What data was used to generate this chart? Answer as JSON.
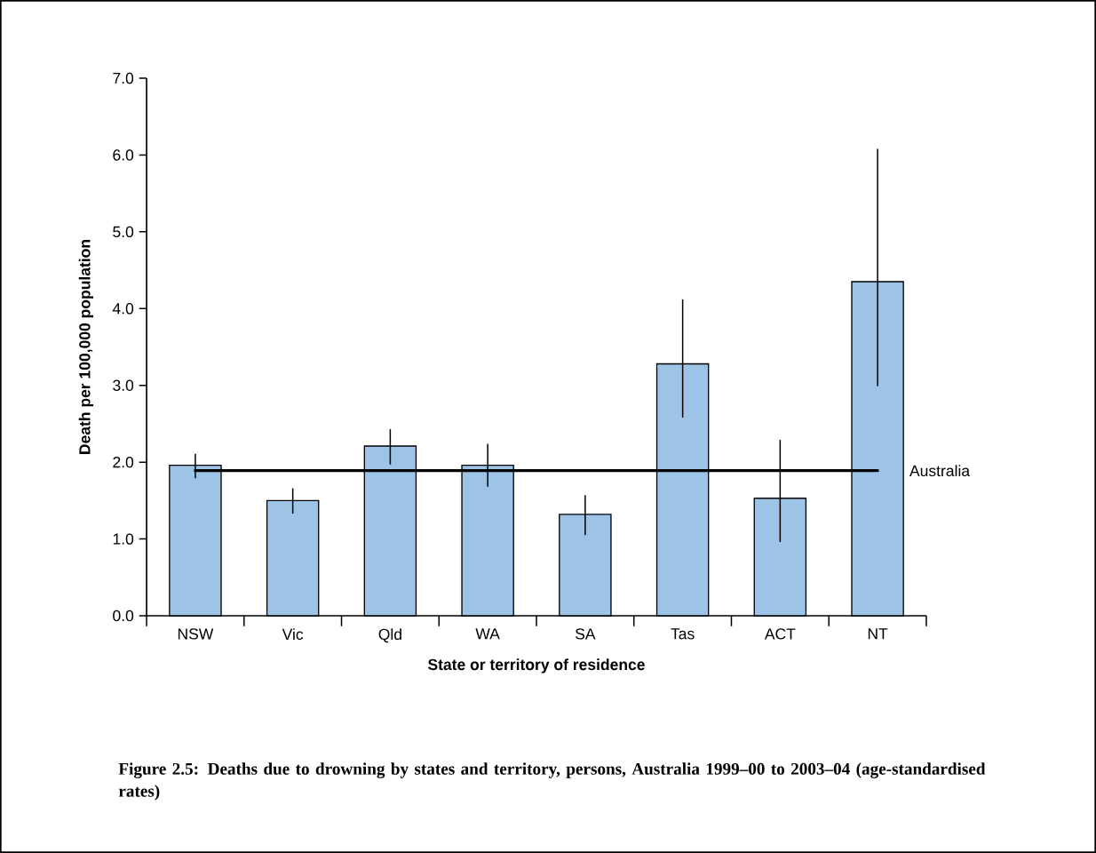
{
  "chart_data": {
    "type": "bar",
    "title": "Figure 2.5: Deaths due to drowning by states and territory, persons, Australia 1999–00 to 2003–04 (age-standardised rates)",
    "xlabel": "State or territory of residence",
    "ylabel": "Death per 100,000 population",
    "categories": [
      "NSW",
      "Vic",
      "Qld",
      "WA",
      "SA",
      "Tas",
      "ACT",
      "NT"
    ],
    "values": [
      1.96,
      1.5,
      2.21,
      1.96,
      1.32,
      3.28,
      1.53,
      4.35
    ],
    "errors": [
      [
        1.79,
        2.11
      ],
      [
        1.33,
        1.66
      ],
      [
        1.97,
        2.43
      ],
      [
        1.68,
        2.24
      ],
      [
        1.05,
        1.57
      ],
      [
        2.58,
        4.12
      ],
      [
        0.96,
        2.29
      ],
      [
        2.99,
        6.08
      ]
    ],
    "color": "#9dc3e6",
    "ylim": [
      0,
      7
    ],
    "yticks": [
      {
        "value": 0,
        "label": "0.0"
      },
      {
        "value": 1,
        "label": "1.0"
      },
      {
        "value": 2,
        "label": "2.0"
      },
      {
        "value": 3,
        "label": "3.0"
      },
      {
        "value": 4,
        "label": "4.0"
      },
      {
        "value": 5,
        "label": "5.0"
      },
      {
        "value": 6,
        "label": "6.0"
      },
      {
        "value": 7,
        "label": "7.0"
      }
    ],
    "ref_lines": [
      {
        "axis": "y",
        "value": 1.89,
        "label": "Australia",
        "color": "#000000"
      }
    ]
  }
}
